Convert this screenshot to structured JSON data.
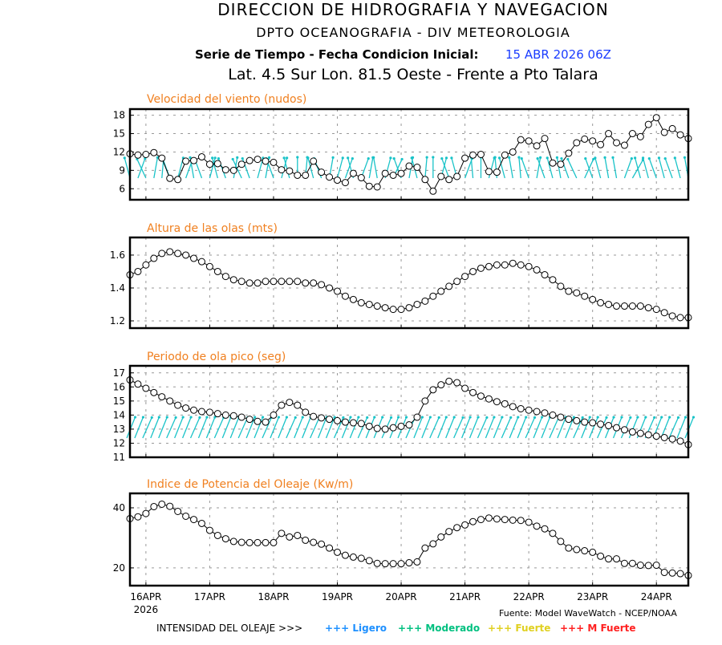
{
  "header": {
    "line1": "DIRECCION DE HIDROGRAFIA Y NAVEGACION",
    "line2": "DPTO OCEANOGRAFIA - DIV METEOROLOGIA",
    "line3_label": "Serie de Tiempo - Fecha Condicion Inicial:",
    "line3_date": "15 ABR 2026 06Z",
    "line4": "Lat. 4.5 Sur  Lon. 81.5 Oeste - Frente a Pto Talara"
  },
  "colors": {
    "panel_title": "#f08020",
    "arrows": "#19c3c8",
    "date": "#1a3cff",
    "ligero": "#1e90ff",
    "moderado": "#00c080",
    "fuerte": "#e0d020",
    "m_fuerte": "#ff2020"
  },
  "time_axis": {
    "start": "15 ABR 2026 06Z",
    "interval_hours": 3,
    "tick_labels": [
      "16APR",
      "17APR",
      "18APR",
      "19APR",
      "20APR",
      "21APR",
      "22APR",
      "23APR",
      "24APR"
    ],
    "year_label": "2026"
  },
  "source": "Fuente: Model WaveWatch - NCEP/NOAA",
  "legend": {
    "label": "INTENSIDAD DEL OLEAJE >>>",
    "items": [
      {
        "text": "+++ Ligero",
        "color": "#1e90ff"
      },
      {
        "text": "+++ Moderado",
        "color": "#00c080"
      },
      {
        "text": "+++ Fuerte",
        "color": "#e0d020"
      },
      {
        "text": "+++ M Fuerte",
        "color": "#ff2020"
      }
    ]
  },
  "chart_data": [
    {
      "type": "line",
      "title": "Velocidad del viento (nudos)",
      "ylim": [
        4.2,
        19
      ],
      "yticks": [
        6,
        9,
        12,
        15,
        18
      ],
      "grid": true,
      "values": [
        11.7,
        11.5,
        11.6,
        11.9,
        11,
        7.7,
        7.5,
        10.5,
        10.6,
        11.2,
        10,
        10.1,
        9.1,
        9,
        10,
        10.6,
        10.8,
        10.5,
        10.3,
        9.1,
        8.9,
        8.2,
        8.2,
        10.5,
        8.7,
        7.9,
        7.4,
        7,
        8.5,
        7.8,
        6.4,
        6.3,
        8.5,
        8.2,
        8.5,
        9.7,
        9.5,
        7.5,
        5.6,
        8,
        7.5,
        8,
        11,
        11.5,
        11.6,
        8.8,
        8.7,
        11.5,
        12,
        14,
        13.8,
        13,
        14.2,
        10.2,
        10,
        11.8,
        13.5,
        14.1,
        13.8,
        13.2,
        15,
        13.5,
        13.1,
        15,
        14.5,
        16.5,
        17.6,
        15.2,
        15.8,
        14.8,
        14.2
      ],
      "direction_arrows_deg": [
        -15,
        20,
        -25,
        10,
        5,
        -20,
        15,
        20,
        -10,
        -20,
        15,
        -15,
        -20,
        10,
        -25,
        -20,
        15,
        10,
        -20,
        15,
        -15,
        0,
        5,
        -15,
        -20,
        10,
        15,
        20,
        -15,
        20,
        10,
        -10,
        15,
        25,
        -20,
        10,
        -15,
        5,
        0,
        15,
        -20,
        -15,
        20,
        -5,
        0,
        15,
        -5,
        -15,
        -10,
        -5,
        -20,
        10,
        -20,
        -15,
        -10,
        -20,
        -25,
        25,
        -20,
        -15,
        -10,
        -10,
        20,
        30,
        -15,
        -15,
        -20,
        -15,
        -20,
        -15,
        -10
      ]
    },
    {
      "type": "line",
      "title": "Altura de las olas (mts)",
      "ylim": [
        1.156,
        1.707
      ],
      "yticks": [
        1.2,
        1.4,
        1.6
      ],
      "grid": true,
      "values": [
        1.48,
        1.5,
        1.54,
        1.58,
        1.61,
        1.62,
        1.61,
        1.6,
        1.58,
        1.56,
        1.53,
        1.5,
        1.47,
        1.45,
        1.44,
        1.43,
        1.43,
        1.44,
        1.44,
        1.44,
        1.44,
        1.44,
        1.43,
        1.43,
        1.42,
        1.4,
        1.38,
        1.35,
        1.33,
        1.31,
        1.3,
        1.29,
        1.28,
        1.27,
        1.27,
        1.28,
        1.3,
        1.32,
        1.35,
        1.38,
        1.41,
        1.44,
        1.47,
        1.5,
        1.52,
        1.53,
        1.54,
        1.54,
        1.55,
        1.54,
        1.53,
        1.51,
        1.48,
        1.45,
        1.41,
        1.38,
        1.37,
        1.35,
        1.33,
        1.31,
        1.3,
        1.29,
        1.29,
        1.29,
        1.29,
        1.28,
        1.27,
        1.25,
        1.23,
        1.22,
        1.22
      ]
    },
    {
      "type": "line",
      "title": "Periodo de ola pico (seg)",
      "ylim": [
        11,
        17.5
      ],
      "yticks": [
        11,
        12,
        13,
        14,
        15,
        16,
        17
      ],
      "grid": true,
      "values": [
        16.5,
        16.2,
        15.9,
        15.6,
        15.3,
        15.0,
        14.7,
        14.5,
        14.35,
        14.25,
        14.2,
        14.1,
        14.0,
        13.95,
        13.85,
        13.7,
        13.55,
        13.5,
        14.0,
        14.7,
        14.9,
        14.7,
        14.2,
        13.9,
        13.8,
        13.7,
        13.6,
        13.5,
        13.45,
        13.4,
        13.2,
        13.05,
        13.0,
        13.1,
        13.2,
        13.3,
        13.85,
        15.0,
        15.8,
        16.15,
        16.4,
        16.3,
        15.9,
        15.6,
        15.35,
        15.15,
        14.95,
        14.8,
        14.6,
        14.45,
        14.35,
        14.25,
        14.15,
        14.0,
        13.85,
        13.7,
        13.6,
        13.5,
        13.45,
        13.35,
        13.25,
        13.1,
        12.95,
        12.8,
        12.7,
        12.6,
        12.5,
        12.4,
        12.3,
        12.15,
        11.9
      ],
      "direction_arrows_deg": [
        22,
        22,
        24,
        22,
        22,
        24,
        22,
        22,
        24,
        22,
        22,
        24,
        22,
        22,
        24,
        22,
        22,
        24,
        22,
        22,
        24,
        22,
        22,
        24,
        22,
        22,
        24,
        22,
        22,
        24,
        22,
        22,
        24,
        22,
        22,
        24,
        22,
        22,
        24,
        22,
        22,
        24,
        22,
        22,
        24,
        22,
        22,
        24,
        22,
        22,
        24,
        22,
        22,
        24,
        22,
        22,
        24,
        22,
        22,
        24,
        22,
        22,
        24,
        22,
        22,
        24,
        22,
        22,
        24,
        22,
        22
      ]
    },
    {
      "type": "line",
      "title": "Indice de Potencia del Oleaje (Kw/m)",
      "ylim": [
        14.1,
        44.8
      ],
      "yticks": [
        20,
        40
      ],
      "grid": true,
      "values": [
        36.4,
        37.0,
        38.1,
        40.4,
        41.2,
        40.5,
        38.8,
        37.2,
        36.1,
        34.8,
        32.5,
        30.8,
        29.7,
        28.8,
        28.5,
        28.4,
        28.4,
        28.4,
        28.4,
        31.5,
        30.3,
        30.8,
        29.2,
        28.5,
        27.9,
        26.6,
        25.2,
        24.2,
        23.6,
        23.2,
        22.4,
        21.5,
        21.4,
        21.4,
        21.4,
        21.7,
        22.0,
        26.6,
        28.0,
        30.3,
        32.1,
        33.4,
        34.3,
        35.4,
        36.1,
        36.6,
        36.3,
        36.1,
        35.9,
        35.8,
        35.2,
        33.9,
        33.0,
        31.5,
        28.8,
        26.6,
        26.1,
        25.7,
        25.2,
        23.9,
        23.0,
        23.0,
        21.5,
        21.5,
        20.9,
        20.8,
        20.9,
        18.5,
        18.3,
        18.1,
        17.5
      ]
    }
  ]
}
